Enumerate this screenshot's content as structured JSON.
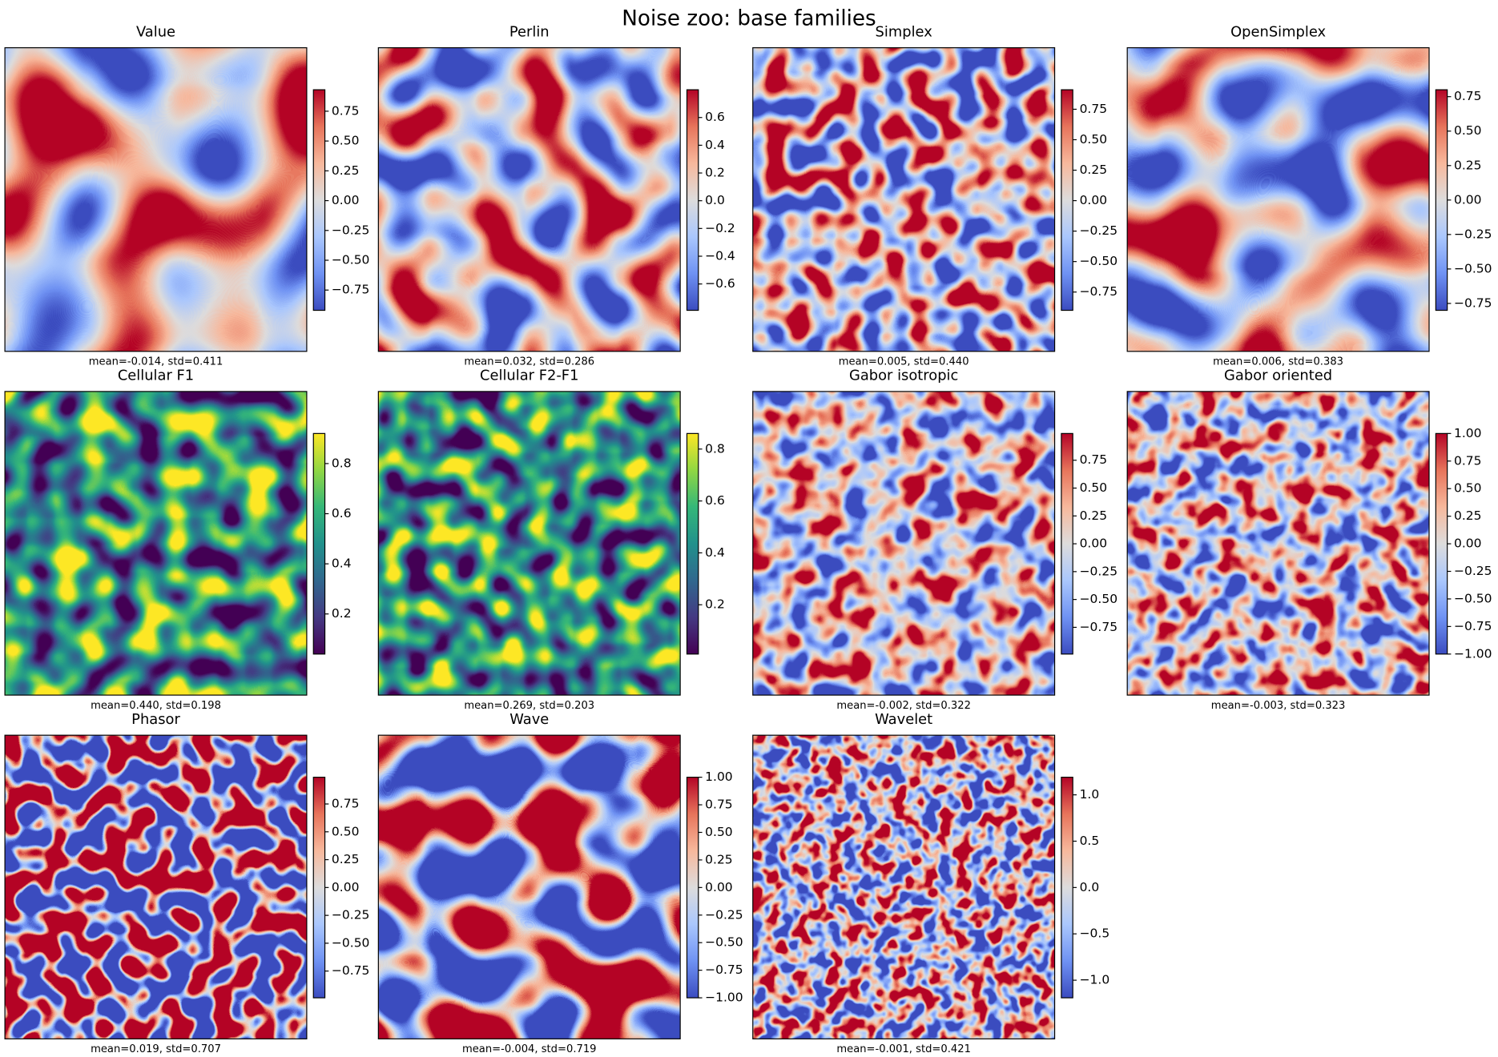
{
  "title": "Noise zoo: base families",
  "chart_data": [
    {
      "type": "heatmap",
      "title": "Value",
      "caption": "mean=-0.014, std=0.411",
      "colormap": "coolwarm",
      "clim": [
        -0.92,
        0.93
      ],
      "cticks": [
        {
          "value": -0.75,
          "label": "−0.75"
        },
        {
          "value": -0.5,
          "label": "−0.50"
        },
        {
          "value": -0.25,
          "label": "−0.25"
        },
        {
          "value": 0,
          "label": "0.00"
        },
        0.25,
        {
          "value": 0.5,
          "label": "0.50"
        },
        0.75
      ]
    },
    {
      "type": "heatmap",
      "title": "Perlin",
      "caption": "mean=0.032, std=0.286",
      "colormap": "coolwarm",
      "clim": [
        -0.79,
        0.8
      ],
      "cticks": [
        {
          "value": -0.6,
          "label": "−0.6"
        },
        {
          "value": -0.4,
          "label": "−0.4"
        },
        {
          "value": -0.2,
          "label": "−0.2"
        },
        {
          "value": 0,
          "label": "0.0"
        },
        0.2,
        0.4,
        0.6
      ]
    },
    {
      "type": "heatmap",
      "title": "Simplex",
      "caption": "mean=0.005, std=0.440",
      "colormap": "coolwarm",
      "clim": [
        -0.9,
        0.91
      ],
      "cticks": [
        {
          "value": -0.75,
          "label": "−0.75"
        },
        {
          "value": -0.5,
          "label": "−0.50"
        },
        {
          "value": -0.25,
          "label": "−0.25"
        },
        {
          "value": 0,
          "label": "0.00"
        },
        0.25,
        {
          "value": 0.5,
          "label": "0.50"
        },
        0.75
      ]
    },
    {
      "type": "heatmap",
      "title": "OpenSimplex",
      "caption": "mean=0.006, std=0.383",
      "colormap": "coolwarm",
      "clim": [
        -0.8,
        0.8
      ],
      "cticks": [
        {
          "value": -0.75,
          "label": "−0.75"
        },
        {
          "value": -0.5,
          "label": "−0.50"
        },
        {
          "value": -0.25,
          "label": "−0.25"
        },
        {
          "value": 0,
          "label": "0.00"
        },
        0.25,
        {
          "value": 0.5,
          "label": "0.50"
        },
        0.75
      ]
    },
    {
      "type": "heatmap",
      "title": "Cellular F1",
      "caption": "mean=0.440, std=0.198",
      "colormap": "viridis",
      "clim": [
        0.04,
        0.92
      ],
      "cticks": [
        0.2,
        0.4,
        0.6,
        0.8
      ]
    },
    {
      "type": "heatmap",
      "title": "Cellular F2-F1",
      "caption": "mean=0.269, std=0.203",
      "colormap": "viridis",
      "clim": [
        0.01,
        0.86
      ],
      "cticks": [
        0.2,
        0.4,
        0.6,
        0.8
      ]
    },
    {
      "type": "heatmap",
      "title": "Gabor isotropic",
      "caption": "mean=-0.002, std=0.322",
      "colormap": "coolwarm",
      "clim": [
        -0.99,
        0.99
      ],
      "cticks": [
        {
          "value": -0.75,
          "label": "−0.75"
        },
        {
          "value": -0.5,
          "label": "−0.50"
        },
        {
          "value": -0.25,
          "label": "−0.25"
        },
        {
          "value": 0,
          "label": "0.00"
        },
        0.25,
        {
          "value": 0.5,
          "label": "0.50"
        },
        0.75
      ]
    },
    {
      "type": "heatmap",
      "title": "Gabor oriented",
      "caption": "mean=-0.003, std=0.323",
      "colormap": "coolwarm",
      "clim": [
        -1,
        1
      ],
      "cticks": [
        {
          "value": -1,
          "label": "−1.00"
        },
        {
          "value": -0.75,
          "label": "−0.75"
        },
        {
          "value": -0.5,
          "label": "−0.50"
        },
        {
          "value": -0.25,
          "label": "−0.25"
        },
        {
          "value": 0,
          "label": "0.00"
        },
        0.25,
        {
          "value": 0.5,
          "label": "0.50"
        },
        0.75,
        {
          "value": 1,
          "label": "1.00"
        }
      ]
    },
    {
      "type": "heatmap",
      "title": "Phasor",
      "caption": "mean=0.019, std=0.707",
      "colormap": "coolwarm",
      "clim": [
        -0.99,
        0.99
      ],
      "cticks": [
        {
          "value": -0.75,
          "label": "−0.75"
        },
        {
          "value": -0.5,
          "label": "−0.50"
        },
        {
          "value": -0.25,
          "label": "−0.25"
        },
        {
          "value": 0,
          "label": "0.00"
        },
        0.25,
        {
          "value": 0.5,
          "label": "0.50"
        },
        0.75
      ]
    },
    {
      "type": "heatmap",
      "title": "Wave",
      "caption": "mean=-0.004, std=0.719",
      "colormap": "coolwarm",
      "clim": [
        -1,
        1
      ],
      "cticks": [
        {
          "value": -1,
          "label": "−1.00"
        },
        {
          "value": -0.75,
          "label": "−0.75"
        },
        {
          "value": -0.5,
          "label": "−0.50"
        },
        {
          "value": -0.25,
          "label": "−0.25"
        },
        {
          "value": 0,
          "label": "0.00"
        },
        0.25,
        {
          "value": 0.5,
          "label": "0.50"
        },
        0.75,
        {
          "value": 1,
          "label": "1.00"
        }
      ]
    },
    {
      "type": "heatmap",
      "title": "Wavelet",
      "caption": "mean=-0.001, std=0.421",
      "colormap": "coolwarm",
      "clim": [
        -1.19,
        1.19
      ],
      "cticks": [
        {
          "value": -1,
          "label": "−1.0"
        },
        {
          "value": -0.5,
          "label": "−0.5"
        },
        {
          "value": 0,
          "label": "0.0"
        },
        {
          "value": 0.5,
          "label": "0.5"
        },
        {
          "value": 1,
          "label": "1.0"
        }
      ]
    }
  ]
}
